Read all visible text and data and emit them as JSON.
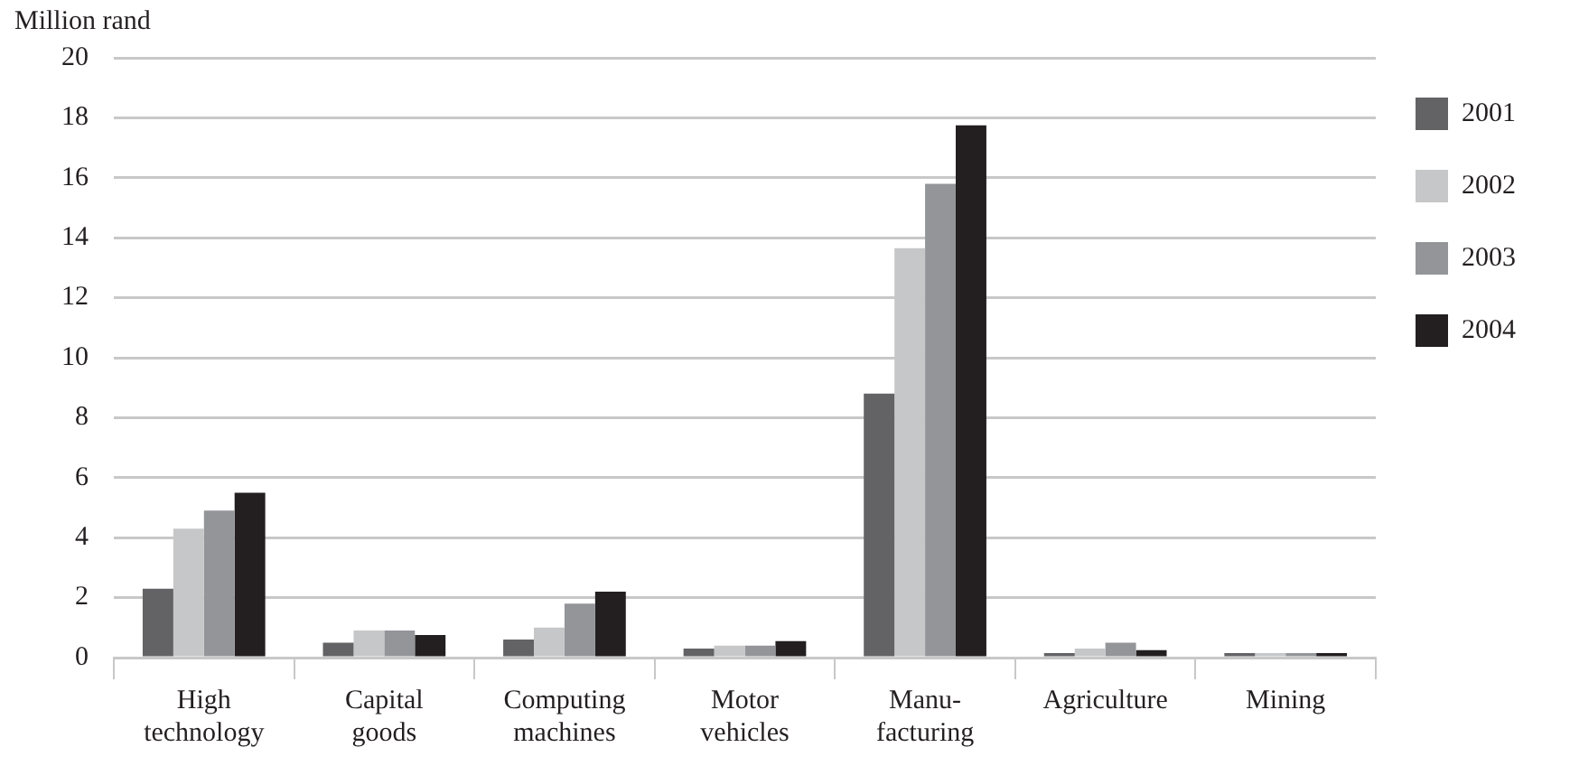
{
  "chart_data": {
    "type": "bar",
    "ylabel": "Million rand",
    "categories": [
      "High\ntechnology",
      "Capital\ngoods",
      "Computing\nmachines",
      "Motor\nvehicles",
      "Manu-\nfacturing",
      "Agriculture",
      "Mining"
    ],
    "series": [
      {
        "name": "2001",
        "color": "#636365",
        "values": [
          2.3,
          0.5,
          0.6,
          0.3,
          8.8,
          0.15,
          0.15
        ]
      },
      {
        "name": "2002",
        "color": "#c6c7c9",
        "values": [
          4.3,
          0.9,
          1.0,
          0.4,
          13.65,
          0.3,
          0.15
        ]
      },
      {
        "name": "2003",
        "color": "#949599",
        "values": [
          4.9,
          0.9,
          1.8,
          0.4,
          15.8,
          0.5,
          0.15
        ]
      },
      {
        "name": "2004",
        "color": "#231f20",
        "values": [
          5.5,
          0.75,
          2.2,
          0.55,
          17.75,
          0.25,
          0.15
        ]
      }
    ],
    "ylim": [
      0,
      20
    ],
    "yticks": [
      0,
      2,
      4,
      6,
      8,
      10,
      12,
      14,
      16,
      18,
      20
    ],
    "grid": "y",
    "legend": "top right"
  }
}
